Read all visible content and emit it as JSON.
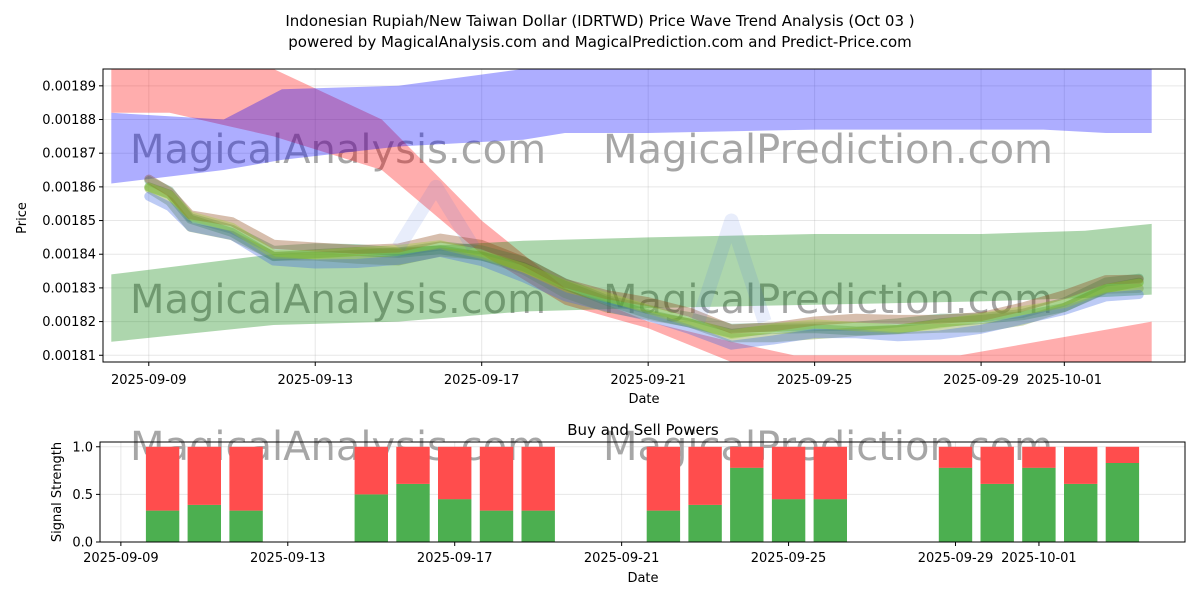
{
  "title_line1": "Indonesian Rupiah/New Taiwan Dollar (IDRTWD) Price Wave Trend Analysis (Oct 03 )",
  "title_line2": "powered by MagicalAnalysis.com and MagicalPrediction.com and Predict-Price.com",
  "watermarks": [
    "MagicalAnalysis.com",
    "MagicalPrediction.com"
  ],
  "chart_data": [
    {
      "type": "area",
      "title": "",
      "xlabel": "Date",
      "ylabel": "Price",
      "xlim_days": [
        -1.1,
        24.9
      ],
      "ylim": [
        0.001808,
        0.001895
      ],
      "xticks": [
        {
          "day": 0,
          "label": "2025-09-09"
        },
        {
          "day": 4,
          "label": "2025-09-13"
        },
        {
          "day": 8,
          "label": "2025-09-17"
        },
        {
          "day": 12,
          "label": "2025-09-21"
        },
        {
          "day": 16,
          "label": "2025-09-25"
        },
        {
          "day": 20,
          "label": "2025-09-29"
        },
        {
          "day": 22,
          "label": "2025-10-01"
        }
      ],
      "yticks": [
        {
          "value": 0.00181,
          "label": "0.00181"
        },
        {
          "value": 0.00182,
          "label": "0.00182"
        },
        {
          "value": 0.00183,
          "label": "0.00183"
        },
        {
          "value": 0.00184,
          "label": "0.00184"
        },
        {
          "value": 0.00185,
          "label": "0.00185"
        },
        {
          "value": 0.00186,
          "label": "0.00186"
        },
        {
          "value": 0.00187,
          "label": "0.00187"
        },
        {
          "value": 0.00188,
          "label": "0.00188"
        },
        {
          "value": 0.00189,
          "label": "0.00189"
        }
      ],
      "grid": true,
      "bands": [
        {
          "name": "red trend band",
          "color": "#ff0000",
          "opacity": 0.32,
          "days": [
            -0.9,
            0.5,
            3,
            5.6,
            8,
            10,
            12,
            14,
            15.5,
            19.5,
            24.1
          ],
          "upper": [
            0.001897,
            0.001897,
            0.001895,
            0.00188,
            0.00185,
            0.00183,
            0.00182,
            0.001814,
            0.00181,
            0.00181,
            0.00182
          ],
          "lower": [
            0.001882,
            0.001882,
            0.001875,
            0.001865,
            0.00184,
            0.001825,
            0.001818,
            0.001808,
            0.001806,
            0.001806,
            0.001806
          ]
        },
        {
          "name": "blue trend band",
          "color": "#0000ff",
          "opacity": 0.32,
          "days": [
            -0.9,
            1.8,
            3.2,
            6,
            9,
            10,
            12,
            16,
            20,
            21.5,
            23,
            24.1
          ],
          "upper": [
            0.001882,
            0.00188,
            0.001889,
            0.00189,
            0.001896,
            0.001897,
            0.001897,
            0.001897,
            0.001897,
            0.001897,
            0.001897,
            0.001897
          ],
          "lower": [
            0.001861,
            0.001865,
            0.001868,
            0.001872,
            0.001874,
            0.001876,
            0.001876,
            0.001877,
            0.001877,
            0.001877,
            0.001876,
            0.001876
          ],
          "peak": null
        },
        {
          "name": "green trend band",
          "color": "#008000",
          "opacity": 0.32,
          "days": [
            -0.9,
            3,
            6,
            9,
            12,
            16,
            20,
            22.5,
            24.1
          ],
          "upper": [
            0.001834,
            0.00184,
            0.001842,
            0.001844,
            0.001845,
            0.001846,
            0.001846,
            0.001847,
            0.001849
          ],
          "lower": [
            0.001814,
            0.001819,
            0.00182,
            0.001823,
            0.001824,
            0.001825,
            0.001826,
            0.001827,
            0.001828
          ]
        }
      ],
      "wave_center": {
        "days": [
          0,
          0.5,
          1,
          2,
          3,
          4,
          5,
          6,
          7,
          8,
          9,
          10,
          11,
          12,
          13,
          14,
          15,
          16,
          17,
          18,
          19,
          20,
          21,
          22,
          23,
          23.8
        ],
        "values": [
          0.00186,
          0.001857,
          0.00185,
          0.001847,
          0.00184,
          0.00184,
          0.00184,
          0.00184,
          0.001842,
          0.00184,
          0.001836,
          0.00183,
          0.001826,
          0.001823,
          0.00182,
          0.001816,
          0.001817,
          0.001818,
          0.001818,
          0.001818,
          0.001819,
          0.00182,
          0.001822,
          0.001825,
          0.00183,
          0.001831
        ]
      },
      "wave_colors": [
        "#228B22",
        "#2E8B57",
        "#6B8E23",
        "#8B4513",
        "#4169E1",
        "#9ACD32"
      ]
    },
    {
      "type": "bar",
      "title": "Buy and Sell Powers",
      "xlabel": "Date",
      "ylabel": "Signal Strength",
      "xlim_days": [
        -1.1,
        24.9
      ],
      "ylim": [
        0,
        1.05
      ],
      "yticks": [
        {
          "value": 0.0,
          "label": "0.0"
        },
        {
          "value": 0.5,
          "label": "0.5"
        },
        {
          "value": 1.0,
          "label": "1.0"
        }
      ],
      "xticks": [
        {
          "day": -0.6,
          "label": "2025-09-09"
        },
        {
          "day": 3.4,
          "label": "2025-09-13"
        },
        {
          "day": 7.4,
          "label": "2025-09-17"
        },
        {
          "day": 11.4,
          "label": "2025-09-21"
        },
        {
          "day": 15.4,
          "label": "2025-09-25"
        },
        {
          "day": 19.4,
          "label": "2025-09-29"
        },
        {
          "day": 21.4,
          "label": "2025-10-01"
        }
      ],
      "buy_color": "#4caf50",
      "sell_color": "#ff4d4d",
      "bars": [
        {
          "day": 0.4,
          "buy": 0.33,
          "sell": 0.67
        },
        {
          "day": 1.4,
          "buy": 0.39,
          "sell": 0.61
        },
        {
          "day": 2.4,
          "buy": 0.33,
          "sell": 0.67
        },
        {
          "day": 5.4,
          "buy": 0.5,
          "sell": 0.5
        },
        {
          "day": 6.4,
          "buy": 0.61,
          "sell": 0.39
        },
        {
          "day": 7.4,
          "buy": 0.45,
          "sell": 0.55
        },
        {
          "day": 8.4,
          "buy": 0.33,
          "sell": 0.67
        },
        {
          "day": 9.4,
          "buy": 0.33,
          "sell": 0.67
        },
        {
          "day": 12.4,
          "buy": 0.33,
          "sell": 0.67
        },
        {
          "day": 13.4,
          "buy": 0.39,
          "sell": 0.61
        },
        {
          "day": 14.4,
          "buy": 0.78,
          "sell": 0.22
        },
        {
          "day": 15.4,
          "buy": 0.45,
          "sell": 0.55
        },
        {
          "day": 16.4,
          "buy": 0.45,
          "sell": 0.55
        },
        {
          "day": 19.4,
          "buy": 0.78,
          "sell": 0.22
        },
        {
          "day": 20.4,
          "buy": 0.61,
          "sell": 0.39
        },
        {
          "day": 21.4,
          "buy": 0.78,
          "sell": 0.22
        },
        {
          "day": 22.4,
          "buy": 0.61,
          "sell": 0.39
        },
        {
          "day": 23.4,
          "buy": 0.83,
          "sell": 0.17
        }
      ]
    }
  ]
}
